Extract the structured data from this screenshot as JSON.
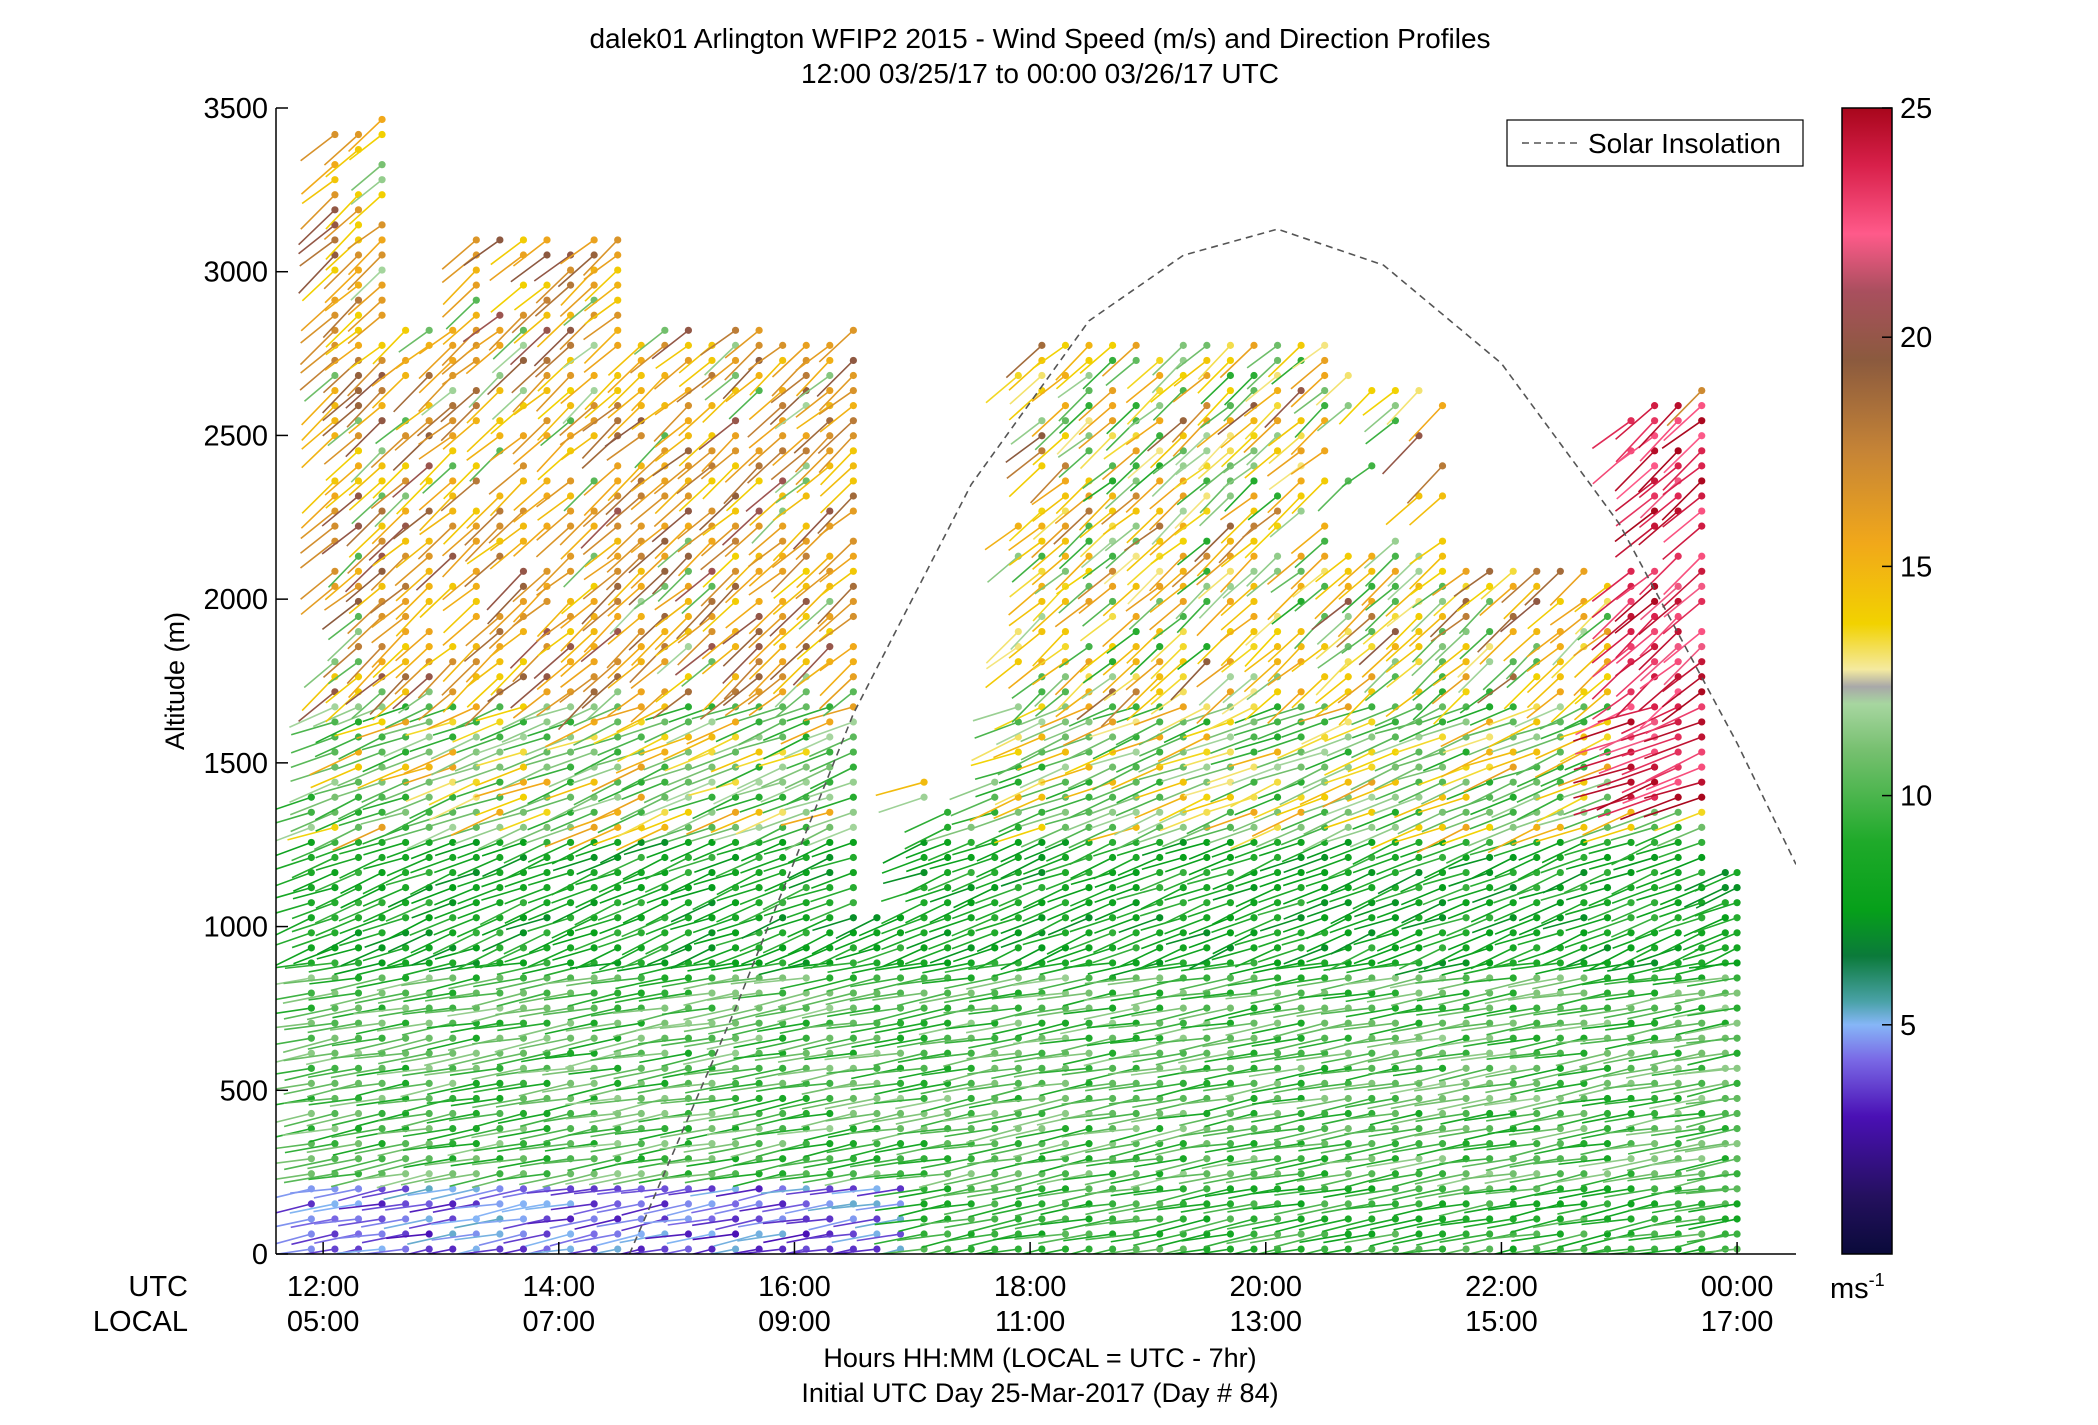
{
  "title_line1": "dalek01 Arlington WFIP2 2015 - Wind Speed (m/s) and Direction Profiles",
  "title_line2": "12:00 03/25/17 to 00:00 03/26/17  UTC",
  "ylabel": "Altitude (m)",
  "xlabel_line1": "Hours HH:MM  (LOCAL = UTC - 7hr)",
  "xlabel_line2": "Initial UTC Day 25-Mar-2017 (Day # 84)",
  "row_label_utc": "UTC",
  "row_label_local": "LOCAL",
  "legend_label": "Solar Insolation",
  "colorbar_unit": "ms",
  "colorbar_unit_exp": "-1",
  "chart_data": {
    "type": "scatter",
    "subtype": "wind-barb profile (stick + dot glyphs colored by speed)",
    "x_unit": "hours UTC from 12:00 03/25/17",
    "xlim": [
      11.6,
      24.5
    ],
    "ylim": [
      0,
      3500
    ],
    "x_ticks": [
      {
        "x": 12,
        "utc": "12:00",
        "local": "05:00"
      },
      {
        "x": 14,
        "utc": "14:00",
        "local": "07:00"
      },
      {
        "x": 16,
        "utc": "16:00",
        "local": "09:00"
      },
      {
        "x": 18,
        "utc": "18:00",
        "local": "11:00"
      },
      {
        "x": 20,
        "utc": "20:00",
        "local": "13:00"
      },
      {
        "x": 22,
        "utc": "22:00",
        "local": "15:00"
      },
      {
        "x": 24,
        "utc": "00:00",
        "local": "17:00"
      }
    ],
    "y_ticks": [
      0,
      500,
      1000,
      1500,
      2000,
      2500,
      3000,
      3500
    ],
    "colorbar": {
      "min": 0,
      "max": 25,
      "ticks": [
        5,
        10,
        15,
        20,
        25
      ]
    },
    "solar_insolation_curve": {
      "style": "dashed gray",
      "x_hours": [
        14.6,
        15.5,
        16.5,
        17.5,
        18.5,
        19.3,
        20.1,
        21.0,
        22.0,
        23.0,
        24.0,
        24.5
      ],
      "y_m": [
        0,
        750,
        1650,
        2350,
        2850,
        3050,
        3130,
        3020,
        2720,
        2230,
        1560,
        1190
      ]
    },
    "profile_times_hours": [
      11.9,
      12.1,
      12.3,
      12.5,
      12.7,
      12.9,
      13.1,
      13.3,
      13.5,
      13.7,
      13.9,
      14.1,
      14.3,
      14.5,
      14.7,
      14.9,
      15.1,
      15.3,
      15.5,
      15.7,
      15.9,
      16.1,
      16.3,
      16.5,
      16.7,
      16.9,
      17.1,
      17.3,
      17.5,
      17.7,
      17.9,
      18.1,
      18.3,
      18.5,
      18.7,
      18.9,
      19.1,
      19.3,
      19.5,
      19.7,
      19.9,
      20.1,
      20.3,
      20.5,
      20.7,
      20.9,
      21.1,
      21.3,
      21.5,
      21.7,
      21.9,
      22.1,
      22.3,
      22.5,
      22.7,
      22.9,
      23.1,
      23.3,
      23.5,
      23.7,
      23.9,
      24.0
    ],
    "layers": [
      {
        "alt_from_m": 0,
        "alt_to_m": 220,
        "speed_ms_12_to_17h": 4,
        "speed_ms_17_to_24h": 9
      },
      {
        "alt_from_m": 220,
        "alt_to_m": 850,
        "speed_ms": 10
      },
      {
        "alt_from_m": 850,
        "alt_to_m": 1300,
        "speed_ms": 8
      },
      {
        "alt_from_m": 1300,
        "alt_to_m": 1700,
        "speed_ms": 11
      },
      {
        "alt_from_m": 1700,
        "alt_to_m": 2900,
        "speed_ms_12_to_17h": 16,
        "speed_ms_18_to_23h": 14
      },
      {
        "alt_from_m": 1350,
        "alt_to_m": 2600,
        "speed_ms_23_to_24h": 24
      }
    ]
  }
}
